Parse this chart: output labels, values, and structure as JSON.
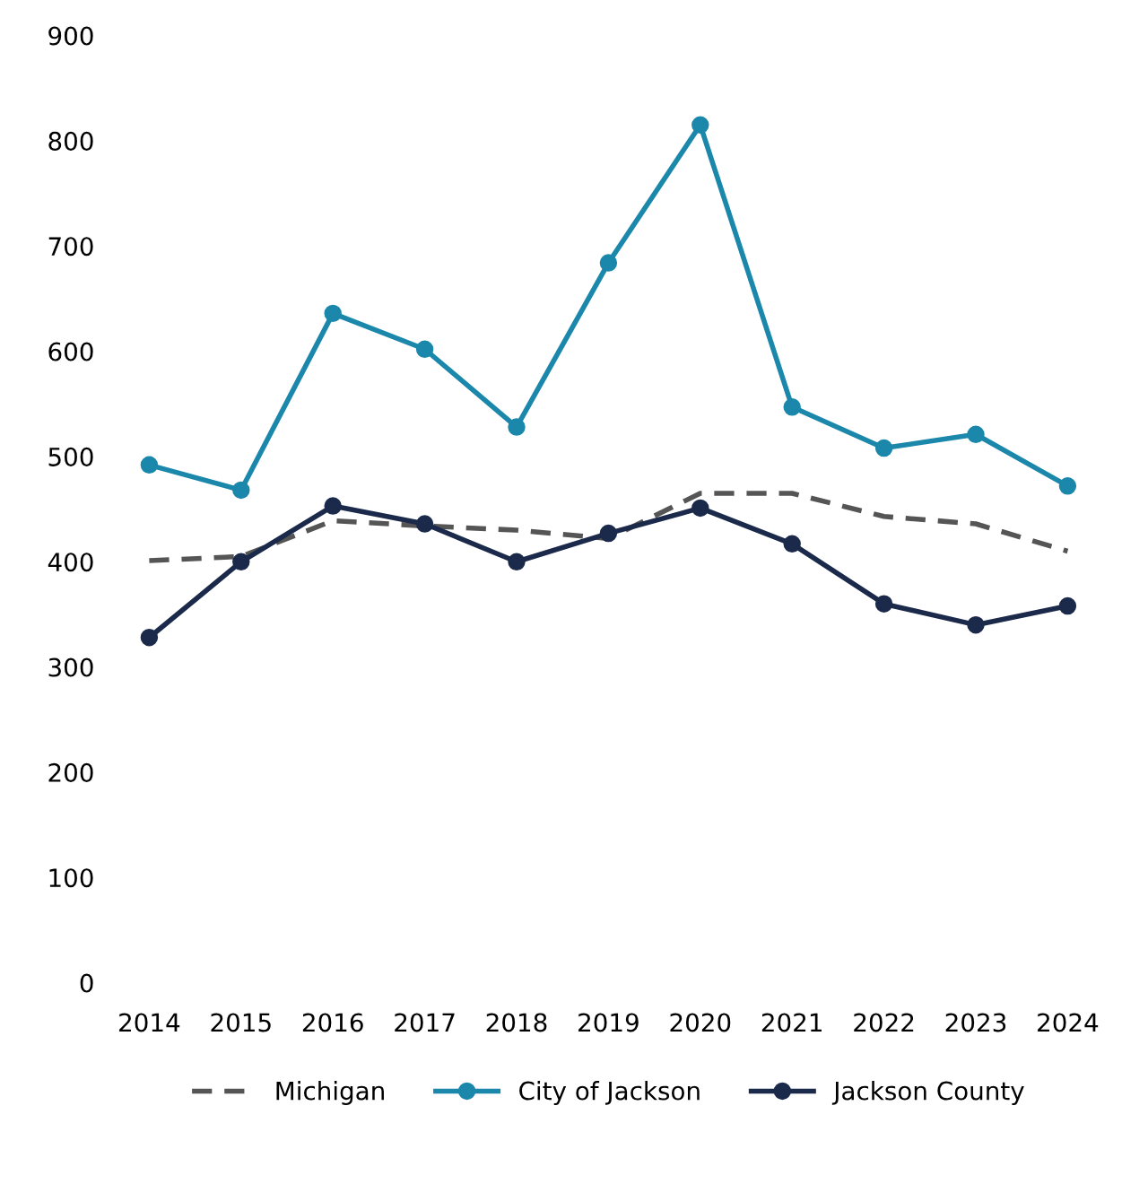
{
  "chart_data": {
    "type": "line",
    "categories": [
      "2014",
      "2015",
      "2016",
      "2017",
      "2018",
      "2019",
      "2020",
      "2021",
      "2022",
      "2023",
      "2024"
    ],
    "series": [
      {
        "name": "Michigan",
        "color": "#555555",
        "marker": "none",
        "line_style": "dashed",
        "values": [
          401,
          405,
          439,
          434,
          430,
          422,
          465,
          465,
          443,
          436,
          410
        ]
      },
      {
        "name": "City of Jackson",
        "color": "#1a87ab",
        "marker": "circle",
        "line_style": "solid",
        "values": [
          492,
          468,
          636,
          602,
          528,
          684,
          815,
          547,
          508,
          521,
          472
        ]
      },
      {
        "name": "Jackson County",
        "color": "#1b2a4a",
        "marker": "circle",
        "line_style": "solid",
        "values": [
          328,
          400,
          453,
          436,
          400,
          427,
          451,
          417,
          360,
          340,
          358
        ]
      }
    ],
    "ylim": [
      0,
      900
    ],
    "yticks": [
      0,
      100,
      200,
      300,
      400,
      500,
      600,
      700,
      800,
      900
    ],
    "grid": false,
    "legend": "bottom"
  }
}
